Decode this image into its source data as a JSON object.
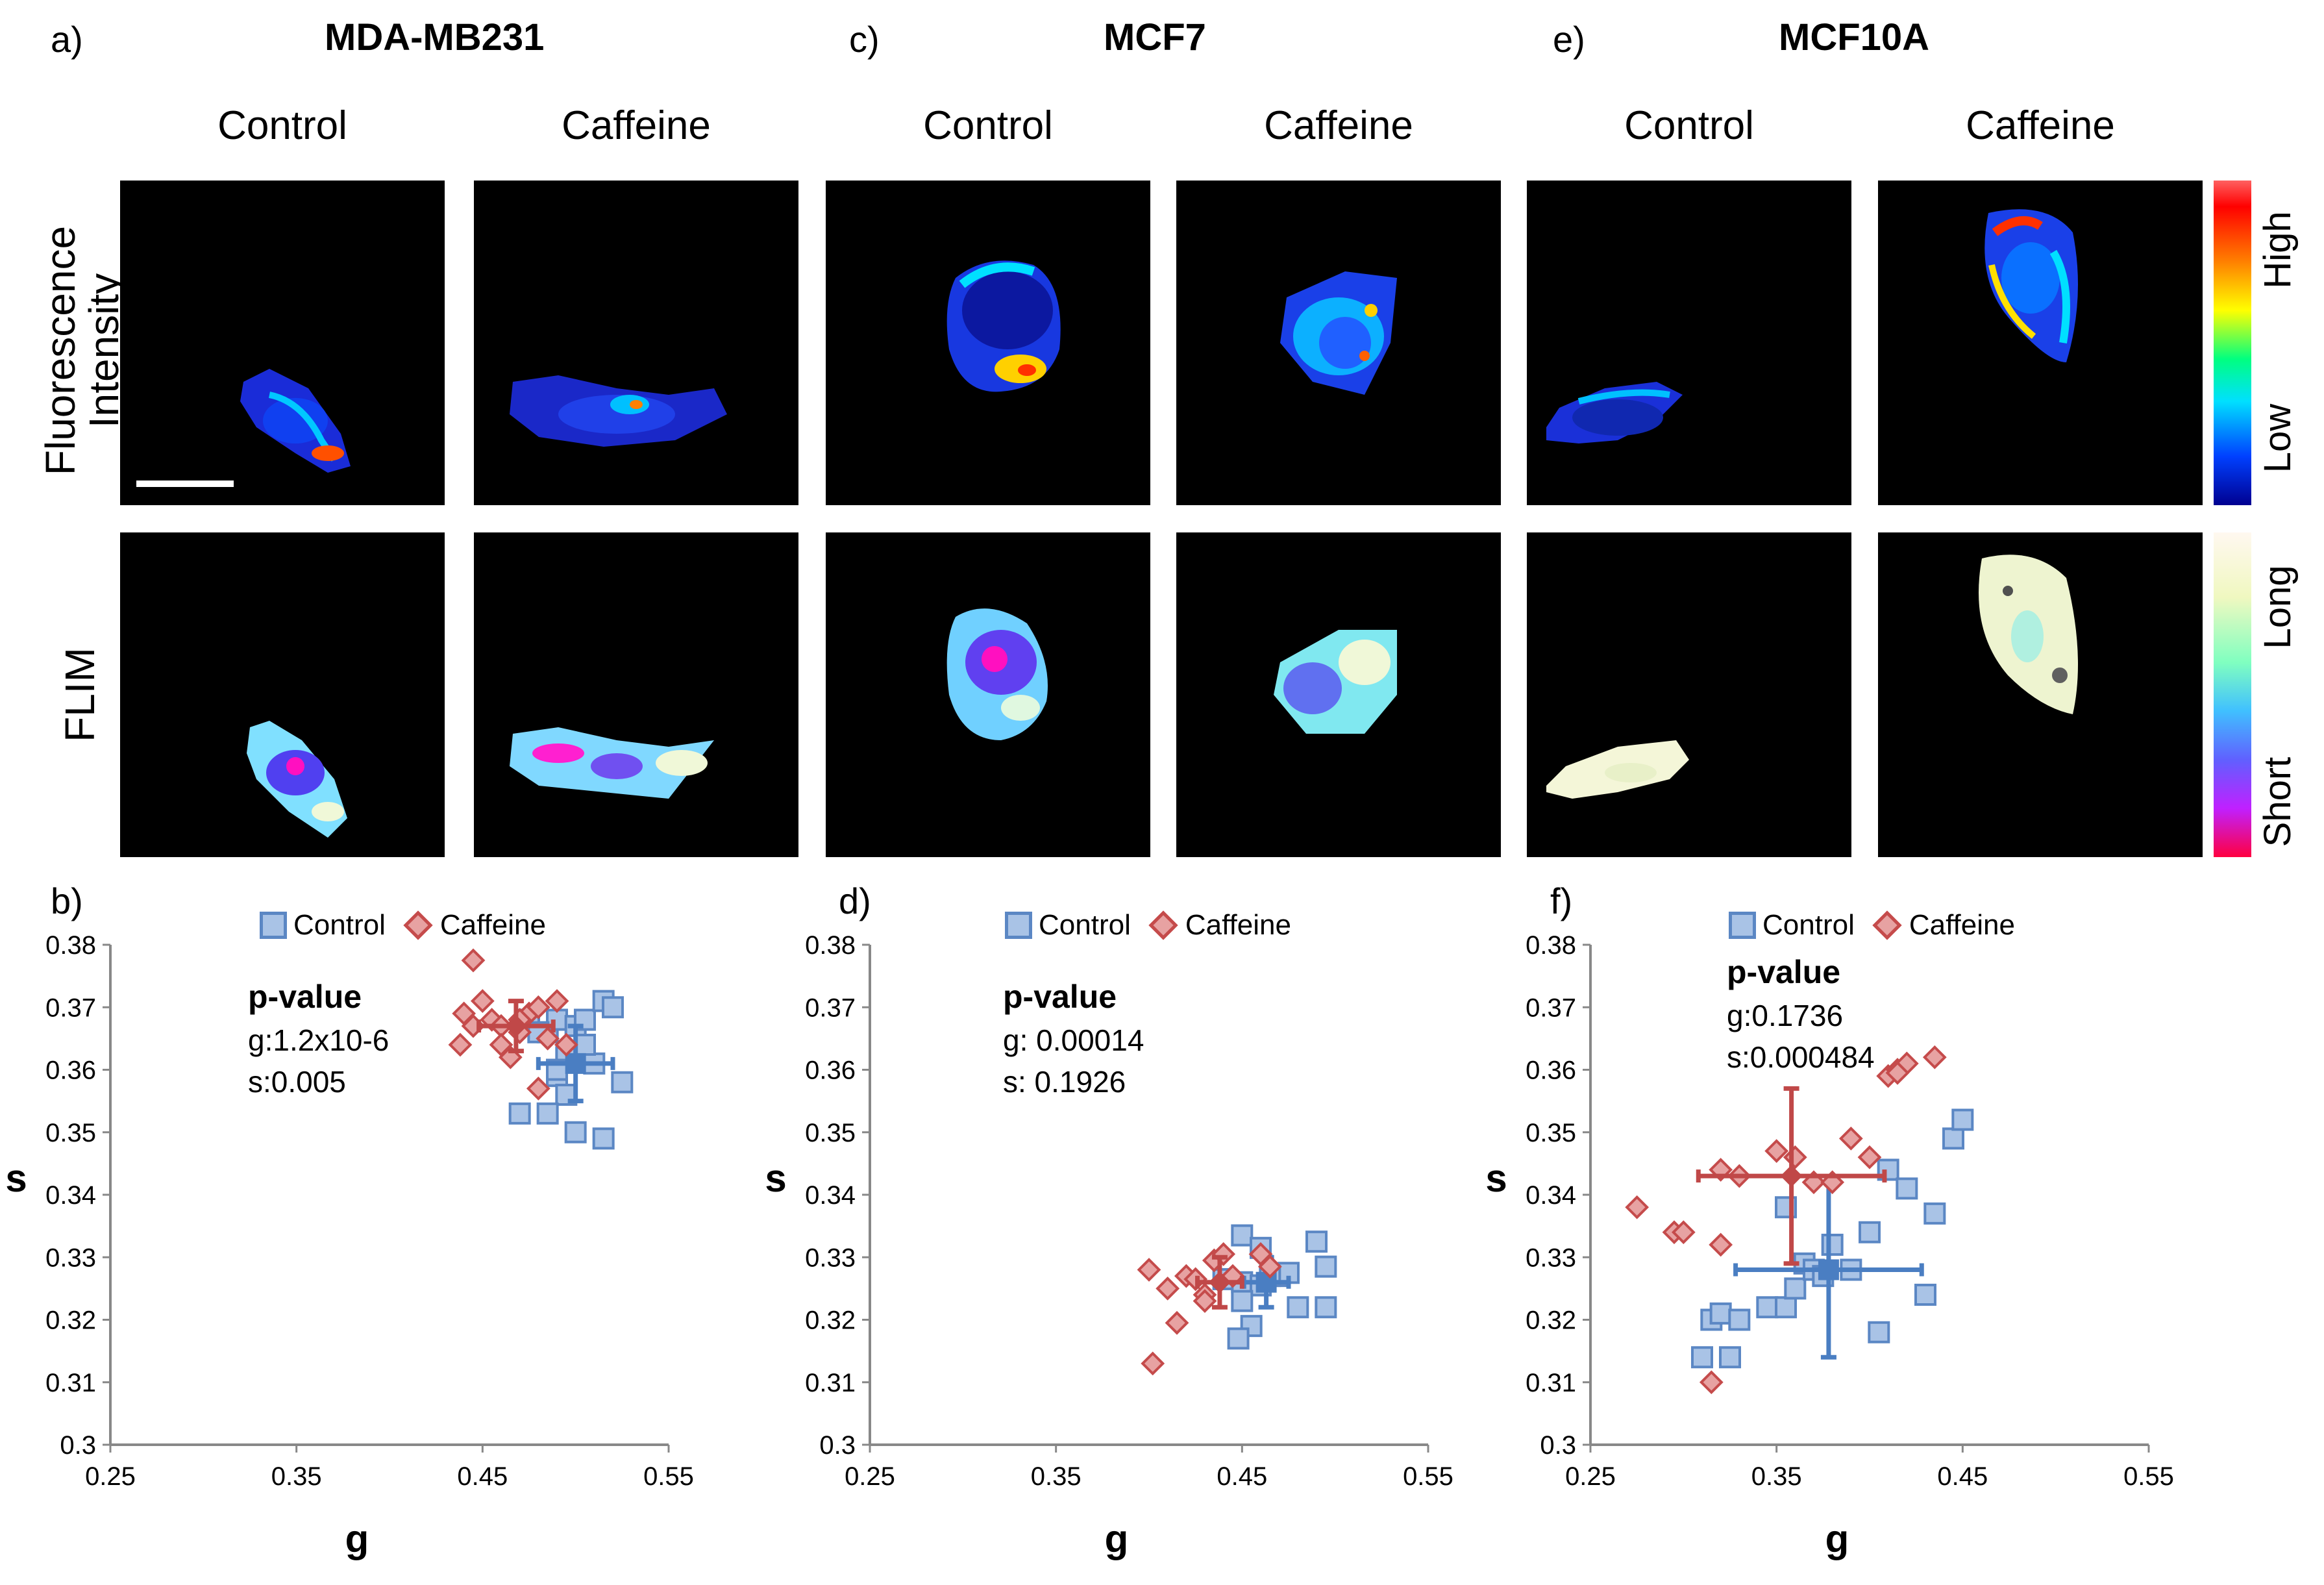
{
  "panels_top": [
    {
      "letter": "a)",
      "cell_line": "MDA-MB231"
    },
    {
      "letter": "c)",
      "cell_line": "MCF7"
    },
    {
      "letter": "e)",
      "cell_line": "MCF10A"
    }
  ],
  "conditions": [
    "Control",
    "Caffeine"
  ],
  "row_labels": {
    "intensity": "Fluorescence\nIntensity",
    "flim": "FLIM"
  },
  "colorbars": {
    "intensity": {
      "high": "High",
      "low": "Low"
    },
    "flim": {
      "long": "Long",
      "short": "Short"
    }
  },
  "legend": {
    "control": "Control",
    "caffeine": "Caffeine"
  },
  "colors": {
    "control_fill": "#a9c3e6",
    "control_edge": "#5b87c4",
    "control_err": "#4a7ec2",
    "caffeine_fill": "#e7a2a2",
    "caffeine_edge": "#c54b4b",
    "caffeine_err": "#c04848"
  },
  "pvalue_title": "p-value",
  "chart_data": [
    {
      "type": "scatter",
      "panel": "b)",
      "xlabel": "g",
      "ylabel": "s",
      "xlim": [
        0.25,
        0.55
      ],
      "ylim": [
        0.3,
        0.38
      ],
      "xticks": [
        "0.25",
        "0.35",
        "0.45",
        "0.55"
      ],
      "yticks": [
        "0.3",
        "0.31",
        "0.32",
        "0.33",
        "0.34",
        "0.35",
        "0.36",
        "0.37",
        "0.38"
      ],
      "pvalue_lines": [
        "g:1.2x10-6",
        "s:0.005"
      ],
      "series": [
        {
          "name": "Control",
          "points": [
            [
              0.475,
              0.368
            ],
            [
              0.485,
              0.366
            ],
            [
              0.49,
              0.368
            ],
            [
              0.495,
              0.362
            ],
            [
              0.5,
              0.367
            ],
            [
              0.505,
              0.368
            ],
            [
              0.51,
              0.361
            ],
            [
              0.515,
              0.371
            ],
            [
              0.52,
              0.37
            ],
            [
              0.49,
              0.359
            ],
            [
              0.495,
              0.356
            ],
            [
              0.47,
              0.353
            ],
            [
              0.485,
              0.353
            ],
            [
              0.5,
              0.35
            ],
            [
              0.515,
              0.349
            ],
            [
              0.525,
              0.358
            ],
            [
              0.49,
              0.36
            ],
            [
              0.505,
              0.364
            ],
            [
              0.48,
              0.366
            ]
          ],
          "mean": [
            0.5,
            0.361
          ],
          "err_x": 0.02,
          "err_y": 0.006
        },
        {
          "name": "Caffeine",
          "points": [
            [
              0.445,
              0.3775
            ],
            [
              0.44,
              0.369
            ],
            [
              0.445,
              0.367
            ],
            [
              0.45,
              0.371
            ],
            [
              0.455,
              0.368
            ],
            [
              0.46,
              0.367
            ],
            [
              0.46,
              0.364
            ],
            [
              0.465,
              0.362
            ],
            [
              0.47,
              0.366
            ],
            [
              0.475,
              0.369
            ],
            [
              0.48,
              0.37
            ],
            [
              0.49,
              0.371
            ],
            [
              0.485,
              0.365
            ],
            [
              0.495,
              0.364
            ],
            [
              0.48,
              0.357
            ],
            [
              0.438,
              0.364
            ],
            [
              0.47,
              0.368
            ]
          ],
          "mean": [
            0.468,
            0.367
          ],
          "err_x": 0.02,
          "err_y": 0.004
        }
      ]
    },
    {
      "type": "scatter",
      "panel": "d)",
      "xlabel": "g",
      "ylabel": "s",
      "xlim": [
        0.25,
        0.55
      ],
      "ylim": [
        0.3,
        0.38
      ],
      "xticks": [
        "0.25",
        "0.35",
        "0.45",
        "0.55"
      ],
      "yticks": [
        "0.3",
        "0.31",
        "0.32",
        "0.33",
        "0.34",
        "0.35",
        "0.36",
        "0.37",
        "0.38"
      ],
      "pvalue_lines": [
        "g: 0.00014",
        "s: 0.1926"
      ],
      "series": [
        {
          "name": "Control",
          "points": [
            [
              0.45,
              0.3335
            ],
            [
              0.46,
              0.3315
            ],
            [
              0.44,
              0.3265
            ],
            [
              0.45,
              0.326
            ],
            [
              0.46,
              0.3255
            ],
            [
              0.47,
              0.327
            ],
            [
              0.475,
              0.3275
            ],
            [
              0.48,
              0.322
            ],
            [
              0.49,
              0.3325
            ],
            [
              0.495,
              0.3285
            ],
            [
              0.495,
              0.322
            ],
            [
              0.455,
              0.319
            ],
            [
              0.448,
              0.317
            ],
            [
              0.45,
              0.323
            ],
            [
              0.465,
              0.327
            ]
          ],
          "mean": [
            0.463,
            0.326
          ],
          "err_x": 0.012,
          "err_y": 0.004
        },
        {
          "name": "Caffeine",
          "points": [
            [
              0.4,
              0.328
            ],
            [
              0.41,
              0.325
            ],
            [
              0.42,
              0.327
            ],
            [
              0.425,
              0.3265
            ],
            [
              0.43,
              0.324
            ],
            [
              0.435,
              0.3295
            ],
            [
              0.44,
              0.3305
            ],
            [
              0.445,
              0.327
            ],
            [
              0.43,
              0.323
            ],
            [
              0.415,
              0.3195
            ],
            [
              0.402,
              0.313
            ],
            [
              0.465,
              0.3285
            ],
            [
              0.46,
              0.3305
            ]
          ],
          "mean": [
            0.438,
            0.326
          ],
          "err_x": 0.012,
          "err_y": 0.004
        }
      ]
    },
    {
      "type": "scatter",
      "panel": "f)",
      "xlabel": "g",
      "ylabel": "s",
      "xlim": [
        0.25,
        0.55
      ],
      "ylim": [
        0.3,
        0.38
      ],
      "xticks": [
        "0.25",
        "0.35",
        "0.45",
        "0.55"
      ],
      "yticks": [
        "0.3",
        "0.31",
        "0.32",
        "0.33",
        "0.34",
        "0.35",
        "0.36",
        "0.37",
        "0.38"
      ],
      "pvalue_lines": [
        "g:0.1736",
        "s:0.000484"
      ],
      "series": [
        {
          "name": "Control",
          "points": [
            [
              0.31,
              0.314
            ],
            [
              0.315,
              0.32
            ],
            [
              0.32,
              0.321
            ],
            [
              0.325,
              0.314
            ],
            [
              0.33,
              0.32
            ],
            [
              0.345,
              0.322
            ],
            [
              0.355,
              0.322
            ],
            [
              0.355,
              0.338
            ],
            [
              0.36,
              0.325
            ],
            [
              0.365,
              0.329
            ],
            [
              0.37,
              0.328
            ],
            [
              0.375,
              0.327
            ],
            [
              0.38,
              0.332
            ],
            [
              0.39,
              0.328
            ],
            [
              0.4,
              0.334
            ],
            [
              0.405,
              0.318
            ],
            [
              0.41,
              0.344
            ],
            [
              0.42,
              0.341
            ],
            [
              0.43,
              0.324
            ],
            [
              0.435,
              0.337
            ],
            [
              0.445,
              0.349
            ],
            [
              0.45,
              0.352
            ]
          ],
          "mean": [
            0.378,
            0.328
          ],
          "err_x": 0.05,
          "err_y": 0.014
        },
        {
          "name": "Caffeine",
          "points": [
            [
              0.275,
              0.338
            ],
            [
              0.295,
              0.334
            ],
            [
              0.3,
              0.334
            ],
            [
              0.315,
              0.31
            ],
            [
              0.32,
              0.332
            ],
            [
              0.32,
              0.344
            ],
            [
              0.33,
              0.343
            ],
            [
              0.35,
              0.347
            ],
            [
              0.36,
              0.346
            ],
            [
              0.37,
              0.342
            ],
            [
              0.38,
              0.342
            ],
            [
              0.39,
              0.349
            ],
            [
              0.4,
              0.346
            ],
            [
              0.41,
              0.359
            ],
            [
              0.415,
              0.36
            ],
            [
              0.42,
              0.361
            ],
            [
              0.435,
              0.362
            ],
            [
              0.415,
              0.3595
            ]
          ],
          "mean": [
            0.358,
            0.343
          ],
          "err_x": 0.05,
          "err_y": 0.014
        }
      ]
    }
  ]
}
